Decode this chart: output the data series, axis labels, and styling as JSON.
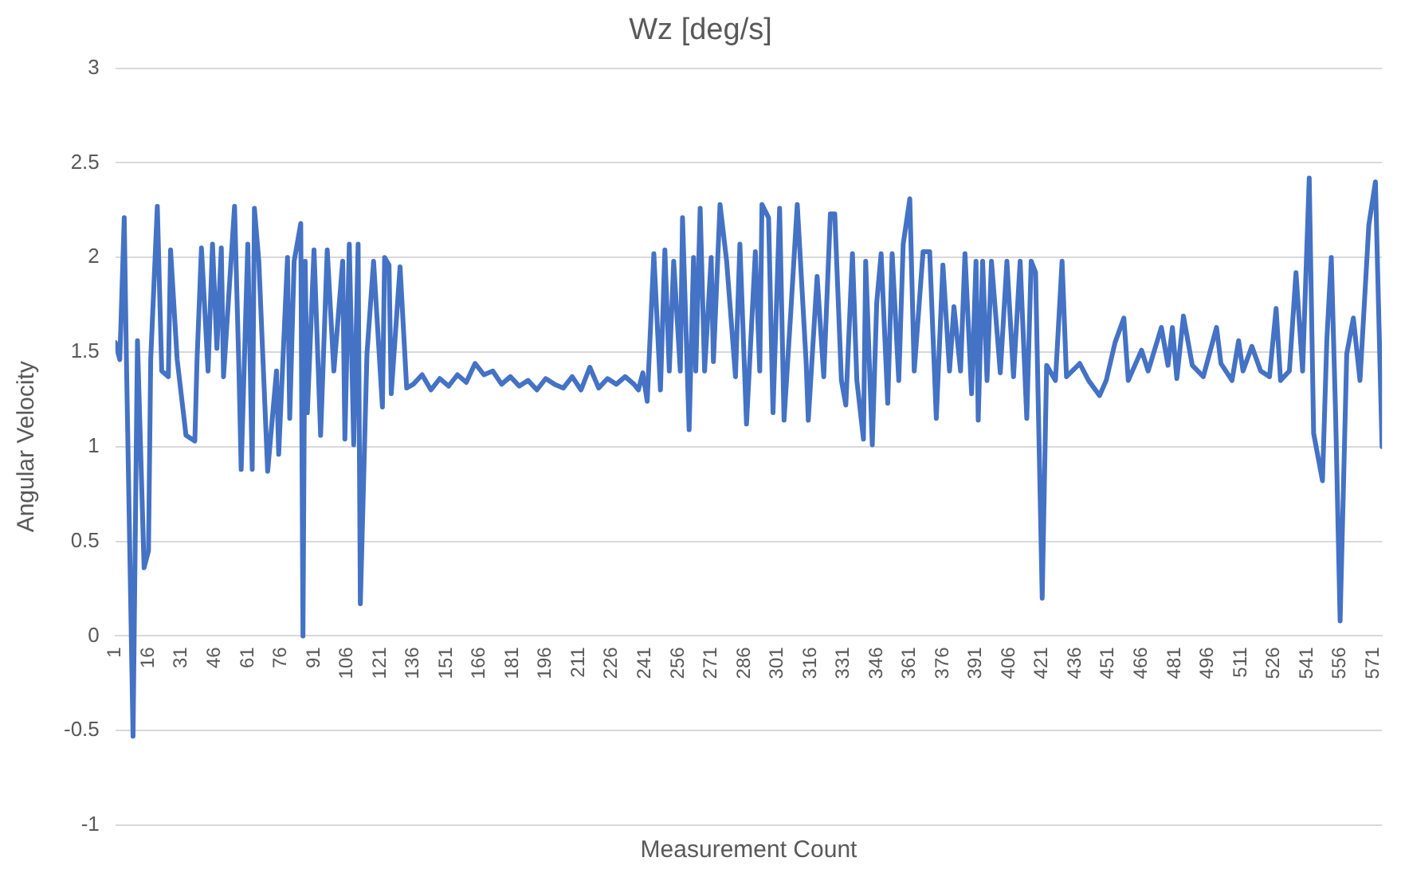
{
  "chart_data": {
    "type": "line",
    "title": "Wz [deg/s]",
    "xlabel": "Measurement Count",
    "ylabel": "Angular Velocity",
    "xlim": [
      1,
      575
    ],
    "xticks": [
      1,
      16,
      31,
      46,
      61,
      76,
      91,
      106,
      121,
      136,
      151,
      166,
      181,
      196,
      211,
      226,
      241,
      256,
      271,
      286,
      301,
      316,
      331,
      346,
      361,
      376,
      391,
      406,
      421,
      436,
      451,
      466,
      481,
      496,
      511,
      526,
      541,
      556,
      571
    ],
    "ylim": [
      -1,
      3
    ],
    "yticks": [
      -1,
      -0.5,
      0,
      0.5,
      1,
      1.5,
      2,
      2.5,
      3
    ],
    "grid": "y",
    "legend": false,
    "marker": "none",
    "line_style": "solid",
    "series": [
      {
        "color": "#4472c4",
        "x": [
          1,
          3,
          5,
          6,
          9,
          11,
          14,
          16,
          17,
          20,
          22,
          25,
          26,
          29,
          33,
          37,
          38,
          40,
          43,
          45,
          47,
          49,
          50,
          55,
          57,
          58,
          61,
          63,
          64,
          66,
          70,
          74,
          75,
          79,
          80,
          82,
          85,
          86,
          87,
          88,
          91,
          94,
          97,
          100,
          104,
          105,
          107,
          109,
          111,
          112,
          115,
          118,
          122,
          123,
          125,
          126,
          130,
          133,
          136,
          140,
          144,
          148,
          152,
          156,
          160,
          164,
          168,
          172,
          176,
          180,
          184,
          188,
          192,
          196,
          200,
          204,
          208,
          212,
          216,
          220,
          224,
          228,
          232,
          236,
          238,
          240,
          242,
          245,
          248,
          250,
          252,
          254,
          257,
          258,
          261,
          263,
          264,
          266,
          268,
          271,
          272,
          275,
          278,
          282,
          284,
          287,
          291,
          293,
          294,
          297,
          299,
          302,
          304,
          307,
          310,
          314,
          315,
          319,
          322,
          325,
          327,
          330,
          332,
          335,
          337,
          340,
          341,
          344,
          346,
          348,
          351,
          353,
          356,
          358,
          361,
          363,
          367,
          370,
          373,
          376,
          379,
          381,
          384,
          386,
          389,
          391,
          392,
          394,
          396,
          398,
          402,
          405,
          408,
          411,
          414,
          416,
          418,
          421,
          423,
          427,
          430,
          432,
          438,
          442,
          447,
          450,
          454,
          458,
          460,
          466,
          469,
          475,
          478,
          480,
          482,
          485,
          489,
          494,
          500,
          502,
          507,
          510,
          512,
          516,
          520,
          524,
          527,
          529,
          533,
          536,
          539,
          542,
          544,
          548,
          550,
          552,
          554,
          556,
          559,
          562,
          565,
          569,
          572,
          575
        ],
        "values": [
          1.55,
          1.46,
          2.21,
          1.46,
          -0.53,
          1.56,
          0.36,
          0.45,
          1.46,
          2.27,
          1.4,
          1.37,
          2.04,
          1.46,
          1.06,
          1.03,
          1.46,
          2.05,
          1.4,
          2.07,
          1.52,
          2.05,
          1.37,
          2.27,
          1.4,
          0.88,
          2.07,
          0.88,
          2.26,
          1.98,
          0.87,
          1.4,
          0.96,
          2.0,
          1.15,
          1.98,
          2.18,
          0.0,
          1.98,
          1.18,
          2.04,
          1.06,
          2.04,
          1.4,
          1.98,
          1.04,
          2.07,
          1.01,
          2.07,
          0.17,
          1.49,
          1.98,
          1.21,
          2.0,
          1.96,
          1.28,
          1.95,
          1.31,
          1.33,
          1.38,
          1.3,
          1.36,
          1.32,
          1.38,
          1.34,
          1.44,
          1.38,
          1.4,
          1.33,
          1.37,
          1.32,
          1.35,
          1.3,
          1.36,
          1.33,
          1.31,
          1.37,
          1.3,
          1.42,
          1.31,
          1.36,
          1.33,
          1.37,
          1.33,
          1.3,
          1.39,
          1.24,
          2.02,
          1.3,
          2.04,
          1.4,
          1.98,
          1.4,
          2.21,
          1.09,
          2.0,
          1.4,
          2.26,
          1.4,
          2.0,
          1.45,
          2.28,
          1.98,
          1.37,
          2.07,
          1.12,
          2.03,
          1.4,
          2.28,
          2.21,
          1.18,
          2.26,
          1.14,
          1.7,
          2.28,
          1.45,
          1.14,
          1.9,
          1.37,
          2.23,
          2.23,
          1.35,
          1.22,
          2.02,
          1.35,
          1.04,
          1.98,
          1.01,
          1.76,
          2.02,
          1.23,
          2.02,
          1.35,
          2.07,
          2.31,
          1.4,
          2.03,
          2.03,
          1.15,
          1.96,
          1.4,
          1.74,
          1.4,
          2.02,
          1.28,
          1.98,
          1.14,
          1.98,
          1.35,
          1.98,
          1.39,
          1.98,
          1.37,
          1.98,
          1.15,
          1.98,
          1.92,
          0.2,
          1.43,
          1.35,
          1.98,
          1.37,
          1.44,
          1.35,
          1.27,
          1.35,
          1.55,
          1.68,
          1.35,
          1.51,
          1.4,
          1.63,
          1.43,
          1.63,
          1.36,
          1.69,
          1.43,
          1.37,
          1.63,
          1.44,
          1.35,
          1.56,
          1.4,
          1.53,
          1.4,
          1.37,
          1.73,
          1.35,
          1.4,
          1.92,
          1.4,
          2.42,
          1.07,
          0.82,
          1.57,
          2.0,
          1.15,
          0.08,
          1.49,
          1.68,
          1.35,
          2.17,
          2.4,
          1.0
        ]
      }
    ]
  }
}
